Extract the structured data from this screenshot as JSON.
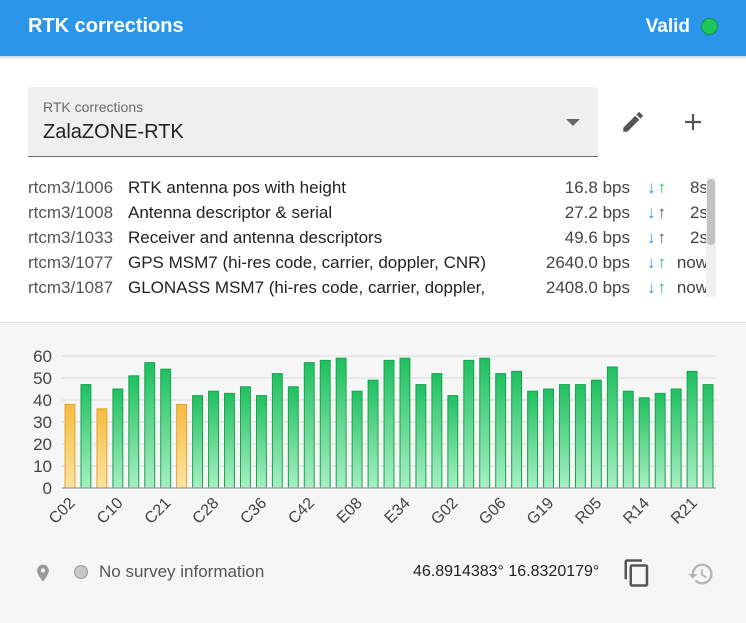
{
  "header": {
    "title": "RTK corrections",
    "status": "Valid",
    "status_color": "#1cc75a",
    "bar_color": "#2b95ea"
  },
  "source": {
    "label": "RTK corrections",
    "value": "ZalaZONE-RTK"
  },
  "messages": [
    {
      "id": "rtcm3/1006",
      "desc": "RTK antenna pos with height",
      "rate": "16.8 bps",
      "down": "↓",
      "up": "↑",
      "up_active": true,
      "age": "8s"
    },
    {
      "id": "rtcm3/1008",
      "desc": "Antenna descriptor & serial",
      "rate": "27.2 bps",
      "down": "↓",
      "up": "↑",
      "up_active": false,
      "age": "2s"
    },
    {
      "id": "rtcm3/1033",
      "desc": "Receiver and antenna descriptors",
      "rate": "49.6 bps",
      "down": "↓",
      "up": "↑",
      "up_active": false,
      "age": "2s"
    },
    {
      "id": "rtcm3/1077",
      "desc": "GPS MSM7 (hi-res code, carrier, doppler, CNR)",
      "rate": "2640.0 bps",
      "down": "↓",
      "up": "↑",
      "up_active": true,
      "age": "now"
    },
    {
      "id": "rtcm3/1087",
      "desc": "GLONASS MSM7 (hi-res code, carrier, doppler,",
      "rate": "2408.0 bps",
      "down": "↓",
      "up": "↑",
      "up_active": true,
      "age": "now"
    }
  ],
  "chart_data": {
    "type": "bar",
    "ylim": [
      0,
      60
    ],
    "yticks": [
      0,
      10,
      20,
      30,
      40,
      50,
      60
    ],
    "xtick_labels": [
      "C02",
      "C10",
      "C21",
      "C28",
      "C36",
      "C42",
      "E08",
      "E34",
      "G02",
      "G06",
      "G19",
      "R05",
      "R14",
      "R21"
    ],
    "xtick_bar_index": [
      0,
      3,
      6,
      9,
      12,
      15,
      18,
      21,
      24,
      27,
      30,
      33,
      36,
      39
    ],
    "values": [
      38,
      47,
      36,
      45,
      51,
      57,
      54,
      38,
      42,
      44,
      43,
      46,
      42,
      52,
      46,
      57,
      58,
      59,
      44,
      49,
      58,
      59,
      47,
      52,
      42,
      58,
      59,
      52,
      53,
      44,
      45,
      47,
      47,
      49,
      55,
      44,
      41,
      43,
      45,
      53,
      47
    ],
    "weak_bar_index": [
      0,
      2,
      7
    ],
    "colors": {
      "good": "#28c46a",
      "weak": "#f6c24e",
      "grid": "#d9d9d9"
    }
  },
  "footer": {
    "survey": "No survey information",
    "lat": "46.8914383°",
    "lon": "16.8320179°"
  }
}
